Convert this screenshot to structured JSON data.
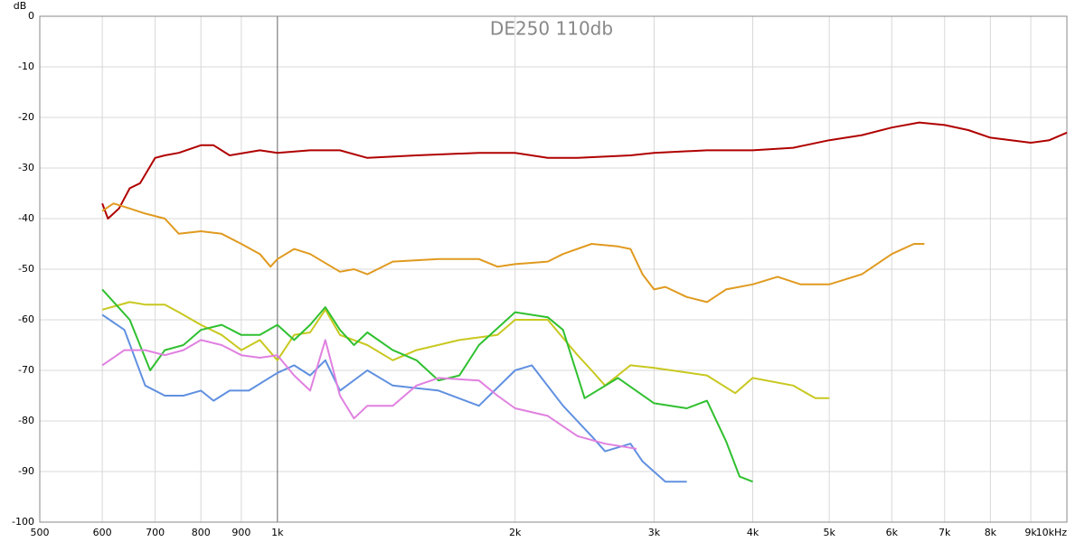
{
  "chart_data": {
    "type": "line",
    "title": "DE250 110db",
    "ylabel": "dB",
    "xscale": "log",
    "grid": true,
    "xlim": [
      500,
      10000
    ],
    "ylim": [
      -100,
      0
    ],
    "xticks": [
      500,
      600,
      700,
      800,
      900,
      {
        "value": 1000,
        "label": "1k"
      },
      {
        "value": 2000,
        "label": "2k"
      },
      {
        "value": 3000,
        "label": "3k"
      },
      {
        "value": 4000,
        "label": "4k"
      },
      {
        "value": 5000,
        "label": "5k"
      },
      {
        "value": 6000,
        "label": "6k"
      },
      {
        "value": 7000,
        "label": "7k"
      },
      {
        "value": 8000,
        "label": "8k"
      },
      {
        "value": 9000,
        "label": "9k"
      },
      {
        "value": 10000,
        "label": "10kHz"
      }
    ],
    "yticks": [
      0,
      -10,
      -20,
      -30,
      -40,
      -50,
      -60,
      -70,
      -80,
      -90,
      -100
    ],
    "series": [
      {
        "color": "#b00000",
        "x": [
          600,
          610,
          630,
          650,
          670,
          700,
          720,
          750,
          800,
          830,
          870,
          950,
          1000,
          1100,
          1200,
          1300,
          1500,
          1800,
          2000,
          2200,
          2400,
          2800,
          3000,
          3500,
          4000,
          4500,
          5000,
          5500,
          6000,
          6500,
          7000,
          7500,
          8000,
          9000,
          9500,
          10000
        ],
        "values": [
          -37,
          -40,
          -38,
          -34,
          -33,
          -28,
          -27.5,
          -27,
          -25.5,
          -25.5,
          -27.5,
          -26.5,
          -27,
          -26.5,
          -26.5,
          -28,
          -27.5,
          -27,
          -27,
          -28,
          -28,
          -27.5,
          -27,
          -26.5,
          -26.5,
          -26,
          -24.5,
          -23.5,
          -22,
          -21,
          -21.5,
          -22.5,
          -24,
          -25,
          -24.5,
          -23
        ]
      },
      {
        "color": "#e09a20",
        "x": [
          600,
          620,
          650,
          680,
          720,
          750,
          800,
          850,
          900,
          950,
          980,
          1000,
          1050,
          1100,
          1200,
          1250,
          1300,
          1400,
          1600,
          1800,
          1900,
          2000,
          2200,
          2300,
          2500,
          2700,
          2800,
          2900,
          3000,
          3100,
          3300,
          3500,
          3700,
          4000,
          4300,
          4600,
          5000,
          5500,
          6000,
          6400,
          6600
        ],
        "values": [
          -38.5,
          -37,
          -38,
          -39,
          -40,
          -43,
          -42.5,
          -43,
          -45,
          -47,
          -49.5,
          -48,
          -46,
          -47,
          -50.5,
          -50,
          -51,
          -48.5,
          -48,
          -48,
          -49.5,
          -49,
          -48.5,
          -47,
          -45,
          -45.5,
          -46,
          -51,
          -54,
          -53.5,
          -55.5,
          -56.5,
          -54,
          -53,
          -51.5,
          -53,
          -53,
          -51,
          -47,
          -45,
          -45
        ]
      },
      {
        "color": "#c8c820",
        "x": [
          600,
          650,
          680,
          720,
          750,
          800,
          850,
          900,
          950,
          1000,
          1050,
          1100,
          1150,
          1200,
          1300,
          1400,
          1500,
          1700,
          1900,
          2000,
          2200,
          2400,
          2500,
          2600,
          2800,
          3000,
          3500,
          3800,
          4000,
          4500,
          4800,
          5000
        ],
        "values": [
          -58,
          -56.5,
          -57,
          -57,
          -58.5,
          -61,
          -63,
          -66,
          -64,
          -68,
          -63,
          -62.5,
          -58,
          -63,
          -65,
          -68,
          -66,
          -64,
          -63,
          -60,
          -60,
          -67,
          -70,
          -73,
          -69,
          -69.5,
          -71,
          -74.5,
          -71.5,
          -73,
          -75.5,
          -75.5
        ]
      },
      {
        "color": "#30c030",
        "x": [
          600,
          650,
          690,
          720,
          760,
          800,
          850,
          900,
          950,
          1000,
          1050,
          1100,
          1150,
          1200,
          1250,
          1300,
          1400,
          1500,
          1600,
          1700,
          1800,
          2000,
          2200,
          2300,
          2450,
          2700,
          3000,
          3300,
          3500,
          3700,
          3850,
          4000
        ],
        "values": [
          -54,
          -60,
          -70,
          -66,
          -65,
          -62,
          -61,
          -63,
          -63,
          -61,
          -64,
          -61,
          -57.5,
          -62,
          -65,
          -62.5,
          -66,
          -68,
          -72,
          -71,
          -65,
          -58.5,
          -59.5,
          -62,
          -75.5,
          -71.5,
          -76.5,
          -77.5,
          -76,
          -84,
          -91,
          -92
        ]
      },
      {
        "color": "#6090e0",
        "x": [
          600,
          640,
          680,
          720,
          760,
          800,
          830,
          870,
          920,
          1000,
          1050,
          1100,
          1150,
          1200,
          1300,
          1400,
          1600,
          1800,
          2000,
          2100,
          2300,
          2500,
          2600,
          2800,
          2900,
          3100,
          3300
        ],
        "values": [
          -59,
          -62,
          -73,
          -75,
          -75,
          -74,
          -76,
          -74,
          -74,
          -70.5,
          -69,
          -71,
          -68,
          -74,
          -70,
          -73,
          -74,
          -77,
          -70,
          -69,
          -77,
          -83,
          -86,
          -84.5,
          -88,
          -92,
          -92
        ]
      },
      {
        "color": "#e080e0",
        "x": [
          600,
          640,
          680,
          720,
          760,
          800,
          850,
          900,
          950,
          1000,
          1050,
          1100,
          1150,
          1200,
          1250,
          1300,
          1400,
          1500,
          1600,
          1800,
          1900,
          2000,
          2200,
          2400,
          2600,
          2850
        ],
        "values": [
          -69,
          -66,
          -66,
          -67,
          -66,
          -64,
          -65,
          -67,
          -67.5,
          -67,
          -71,
          -74,
          -64,
          -75,
          -79.5,
          -77,
          -77,
          -73,
          -71.5,
          -72,
          -75,
          -77.5,
          -79,
          -83,
          -84.5,
          -85.5
        ]
      }
    ]
  }
}
